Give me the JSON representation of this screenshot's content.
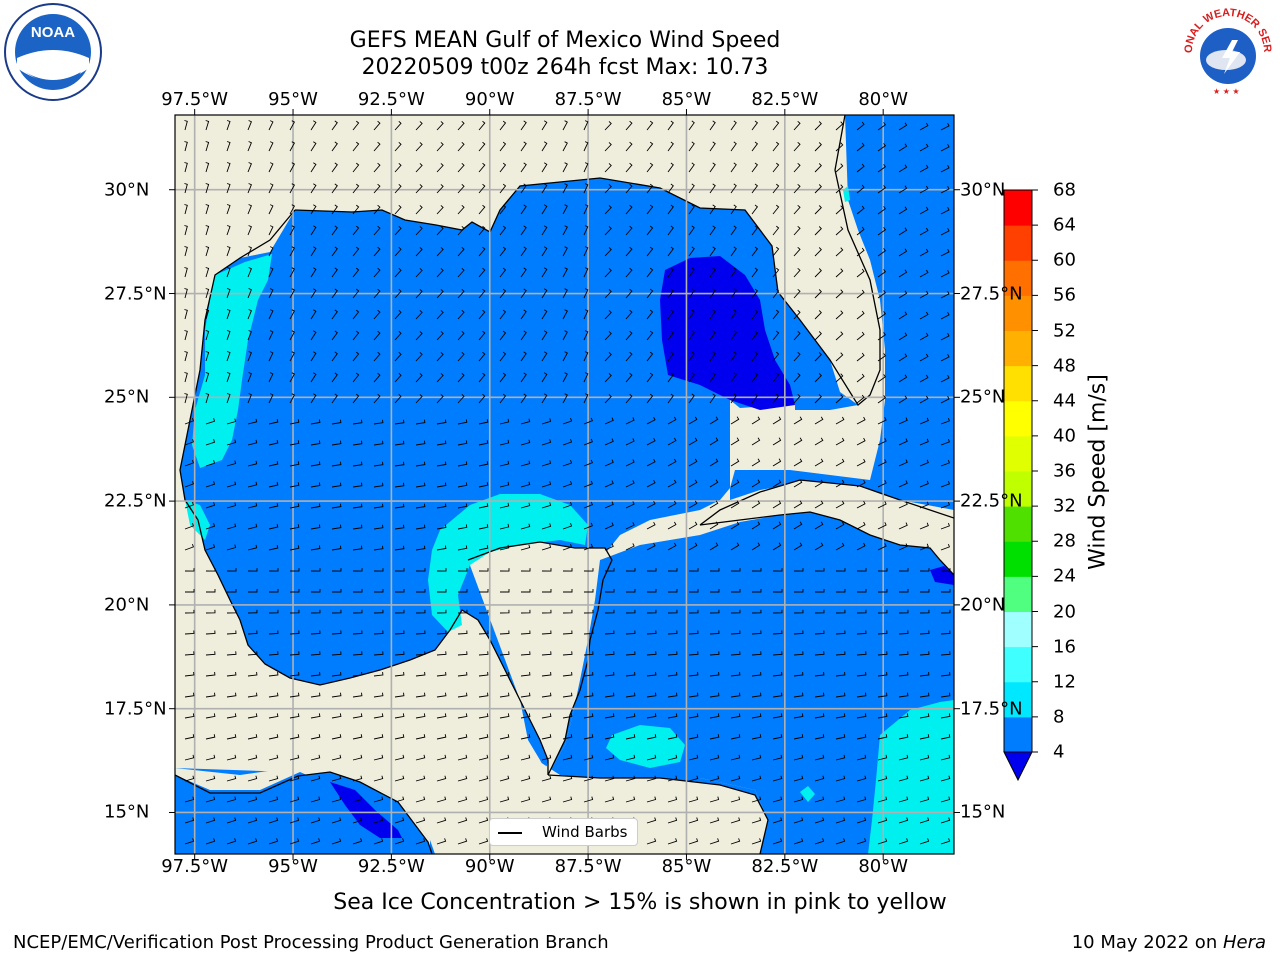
{
  "title": {
    "line1": "GEFS MEAN Gulf of Mexico Wind Speed",
    "line2": "20220509 t00z 264h fcst   Max: 10.73"
  },
  "longitudes": [
    "97.5°W",
    "95°W",
    "92.5°W",
    "90°W",
    "87.5°W",
    "85°W",
    "82.5°W",
    "80°W"
  ],
  "lon_values": [
    -97.5,
    -95,
    -92.5,
    -90,
    -87.5,
    -85,
    -82.5,
    -80
  ],
  "latitudes": [
    "30°N",
    "27.5°N",
    "25°N",
    "22.5°N",
    "20°N",
    "17.5°N",
    "15°N"
  ],
  "lat_values": [
    30,
    27.5,
    25,
    22.5,
    20,
    17.5,
    15
  ],
  "map_extent": {
    "lon": [
      -98,
      -78.2
    ],
    "lat": [
      14,
      31.8
    ]
  },
  "colorbar": {
    "label": "Wind Speed [m/s]",
    "ticks": [
      "68",
      "64",
      "60",
      "56",
      "52",
      "48",
      "44",
      "40",
      "36",
      "32",
      "28",
      "24",
      "20",
      "16",
      "12",
      "8",
      "4"
    ],
    "levels": [
      4,
      8,
      12,
      16,
      20,
      24,
      28,
      32,
      36,
      40,
      44,
      48,
      52,
      56,
      60,
      64,
      68
    ],
    "colors": [
      "#007cff",
      "#00e8ff",
      "#40ffff",
      "#a0ffff",
      "#50ff80",
      "#00e000",
      "#50e000",
      "#c0ff00",
      "#e0ff00",
      "#ffff00",
      "#ffe000",
      "#ffb000",
      "#ff9000",
      "#ff7000",
      "#ff4000",
      "#ff0000"
    ],
    "under_color": "#0000ee"
  },
  "colors": {
    "land": "#efeddb",
    "ocean_4_8": "#007cff",
    "ocean_below_4": "#0000ee",
    "ocean_8_12": "#00f0f0",
    "grid": "#b0b0b0"
  },
  "legend": {
    "label": "Wind Barbs"
  },
  "caption": "Sea Ice Concentration > 15% is shown in pink to yellow",
  "credit": "NCEP/EMC/Verification Post Processing Product Generation Branch",
  "date": {
    "text": "10 May 2022 on ",
    "machine": "Hera"
  },
  "logos": {
    "left": "NOAA",
    "right": "NATIONAL WEATHER SERVICE"
  }
}
